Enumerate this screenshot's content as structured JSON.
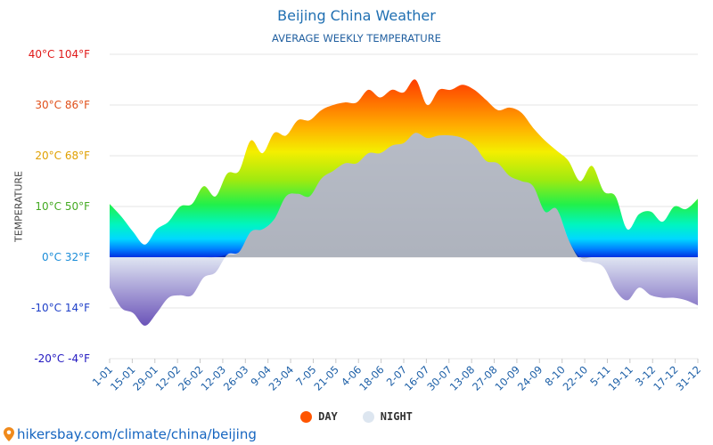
{
  "chart_data": {
    "type": "area",
    "title": "Beijing China Weather",
    "subtitle": "AVERAGE WEEKLY TEMPERATURE",
    "ylabel": "TEMPERATURE",
    "ylim": [
      -20,
      40
    ],
    "y_ticks": [
      {
        "value": 40,
        "label": "40°C 104°F",
        "color": "#e01818"
      },
      {
        "value": 30,
        "label": "30°C 86°F",
        "color": "#e0501a"
      },
      {
        "value": 20,
        "label": "20°C 68°F",
        "color": "#e0a000"
      },
      {
        "value": 10,
        "label": "10°C 50°F",
        "color": "#44aa22"
      },
      {
        "value": 0,
        "label": "0°C 32°F",
        "color": "#1a8cd8"
      },
      {
        "value": -10,
        "label": "-10°C 14°F",
        "color": "#1e3fc8"
      },
      {
        "value": -20,
        "label": "-20°C -4°F",
        "color": "#2218c0"
      }
    ],
    "x_tick_labels": [
      "1-01",
      "15-01",
      "29-01",
      "12-02",
      "26-02",
      "12-03",
      "26-03",
      "9-04",
      "23-04",
      "7-05",
      "21-05",
      "4-06",
      "18-06",
      "2-07",
      "16-07",
      "30-07",
      "13-08",
      "27-08",
      "10-09",
      "24-09",
      "8-10",
      "22-10",
      "5-11",
      "19-11",
      "3-12",
      "17-12",
      "31-12"
    ],
    "series": [
      {
        "name": "DAY",
        "color": "#ff5500",
        "values": [
          10.5,
          8,
          5,
          2.5,
          5.5,
          7,
          10,
          10.5,
          14,
          12,
          16.5,
          17,
          23,
          20.5,
          24.5,
          24,
          27,
          27,
          29,
          30,
          30.5,
          30.5,
          33,
          31.5,
          33,
          32.5,
          35,
          30,
          33,
          33,
          34,
          33,
          31,
          29,
          29.5,
          28.5,
          25.5,
          23,
          21,
          19,
          15,
          18,
          13,
          12,
          5.5,
          8.5,
          9,
          7,
          10,
          9.5,
          11.5
        ]
      },
      {
        "name": "NIGHT",
        "color": "#dde6f0",
        "values": [
          -6,
          -10,
          -11,
          -13.5,
          -11,
          -8,
          -7.5,
          -7.5,
          -4,
          -3,
          0.5,
          1,
          5,
          5.5,
          7.5,
          12,
          12.5,
          12,
          15.5,
          17,
          18.5,
          18.5,
          20.5,
          20.5,
          22,
          22.5,
          24.5,
          23.5,
          24,
          24,
          23.5,
          22,
          19,
          18.5,
          16,
          15,
          14,
          9,
          9.5,
          3.5,
          -0.5,
          -1,
          -2,
          -6.5,
          -8.5,
          -6,
          -7.5,
          -8,
          -8,
          -8.5,
          -9.5
        ]
      }
    ],
    "grid": true,
    "legend_position": "bottom-center"
  },
  "footer": {
    "pin_icon": "location-pin-icon",
    "text": "hikersbay.com/climate/china/beijing"
  }
}
